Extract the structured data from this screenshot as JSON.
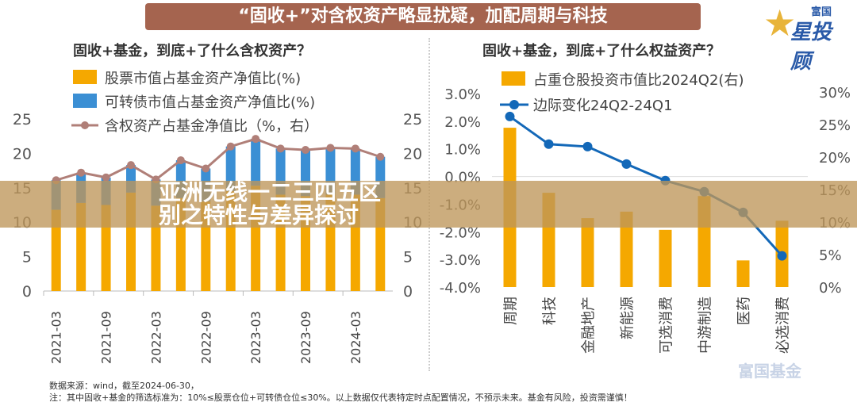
{
  "banner": "“固收+”对含权资产略显扰疑，加配周期与科技",
  "logo": {
    "top": "富国",
    "main": "星投顾"
  },
  "overlay_title": "亚洲无线一二三四五区别之特性与差异探讨",
  "watermark": "富国基金",
  "notes": {
    "source": "数据来源：wind，截至2024-06-30，",
    "disclaimer": "注：其中固收+基金的筛选标准为：10%≤股票仓位+可转债仓位≤30%。以上数据仅代表特定时点配置情况，不预示未来。基金有风险，投资需谨慎！"
  },
  "colors": {
    "stock": "#f5a800",
    "cb": "#3b8fd4",
    "line_left": "#b07f78",
    "line_right": "#1368b8"
  },
  "chart_data": [
    {
      "type": "bar",
      "stacked": true,
      "title": "固收+基金，到底+了什么含权资产？",
      "categories": [
        "2021-03",
        "2021-06",
        "2021-09",
        "2021-12",
        "2022-03",
        "2022-06",
        "2022-09",
        "2022-12",
        "2023-03",
        "2023-06",
        "2023-09",
        "2023-12",
        "2024-03",
        "2024-06"
      ],
      "tick_labels": [
        "2021-03",
        "2021-09",
        "2022-03",
        "2022-09",
        "2023-03",
        "2023-09",
        "2024-03"
      ],
      "ylim": [
        0,
        25
      ],
      "yticks": [
        "0",
        "5",
        "10",
        "15",
        "20",
        "25"
      ],
      "y2lim": [
        0,
        25
      ],
      "y2ticks": [
        "0",
        "5",
        "10",
        "15",
        "20",
        "25"
      ],
      "series": [
        {
          "name": "股票市值占基金资产净值比(%)",
          "kind": "bar",
          "values": [
            11.8,
            12.8,
            12.5,
            14.3,
            12.4,
            13.5,
            13.0,
            14.5,
            15.3,
            14.0,
            13.8,
            14.0,
            14.0,
            13.5
          ]
        },
        {
          "name": "可转债市值占基金资产净值比(%)",
          "kind": "bar",
          "values": [
            4.3,
            4.4,
            4.0,
            4.0,
            3.8,
            5.5,
            4.8,
            6.5,
            6.8,
            6.7,
            6.7,
            6.8,
            6.7,
            6.0
          ]
        },
        {
          "name": "含权资产占基金净值比（%，右）",
          "kind": "line",
          "axis": "right",
          "values": [
            16.1,
            17.2,
            16.5,
            18.3,
            16.2,
            19.0,
            17.8,
            21.0,
            22.1,
            20.7,
            20.5,
            20.8,
            20.7,
            19.5
          ]
        }
      ]
    },
    {
      "type": "bar",
      "title": "固收+基金，到底+了什么权益资产？",
      "categories": [
        "周期",
        "科技",
        "金融地产",
        "新能源",
        "可选消费",
        "中游制造",
        "医药",
        "必选消费"
      ],
      "ylim": [
        -4,
        3
      ],
      "yticks": [
        "-4.0%",
        "-3.0%",
        "-2.0%",
        "-1.0%",
        "0.0%",
        "1.0%",
        "2.0%",
        "3.0%"
      ],
      "y2lim": [
        0,
        30
      ],
      "y2ticks": [
        "0%",
        "5%",
        "10%",
        "15%",
        "20%",
        "25%",
        "30%"
      ],
      "series": [
        {
          "name": "占重仓股投资市值比2024Q2(右)",
          "kind": "bar",
          "axis": "right",
          "values": [
            24.5,
            14.5,
            10.6,
            11.6,
            8.8,
            14.0,
            4.1,
            10.2
          ]
        },
        {
          "name": "边际变化24Q2-24Q1",
          "kind": "line",
          "axis": "left",
          "values": [
            2.17,
            1.17,
            1.08,
            0.45,
            -0.15,
            -0.55,
            -1.3,
            -2.87
          ]
        }
      ]
    }
  ]
}
